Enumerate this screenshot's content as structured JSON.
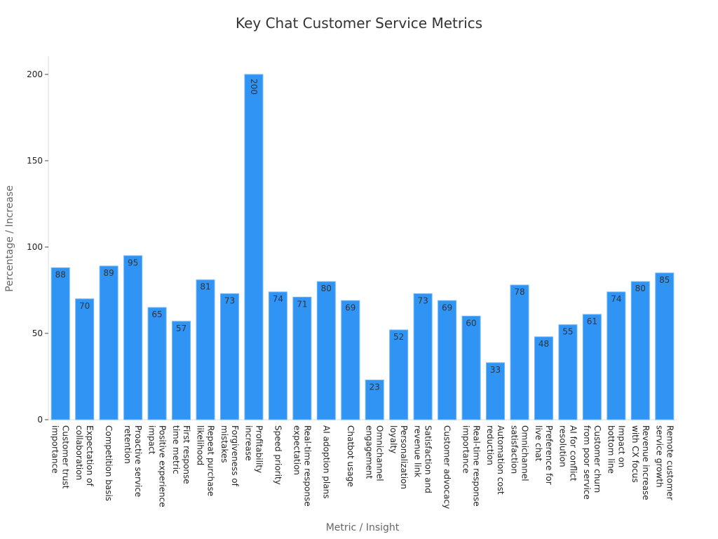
{
  "chart_data": {
    "type": "bar",
    "title": "Key Chat Customer Service Metrics",
    "xlabel": "Metric / Insight",
    "ylabel": "Percentage / Increase",
    "ylim": [
      0,
      210
    ],
    "yticks": [
      0,
      50,
      100,
      150,
      200
    ],
    "grid": false,
    "bar_color": "#3094f5",
    "categories": [
      [
        "Customer trust",
        "importance"
      ],
      [
        "Expectation of",
        "collaboration"
      ],
      [
        "Competition basis"
      ],
      [
        "Proactive service",
        "retention"
      ],
      [
        "Positive experience",
        "impact"
      ],
      [
        "First response",
        "time metric"
      ],
      [
        "Repeat purchase",
        "likelihood"
      ],
      [
        "Forgiveness of",
        "mistakes"
      ],
      [
        "Profitability",
        "increase"
      ],
      [
        "Speed priority"
      ],
      [
        "Real-time response",
        "expectation"
      ],
      [
        "AI adoption plans"
      ],
      [
        "Chatbot usage"
      ],
      [
        "Omnichannel",
        "engagement"
      ],
      [
        "Personalization",
        "loyalty"
      ],
      [
        "Satisfaction and",
        "revenue link"
      ],
      [
        "Customer advocacy"
      ],
      [
        "Real-time response",
        "importance"
      ],
      [
        "Automation cost",
        "reduction"
      ],
      [
        "Omnichannel",
        "satisfaction"
      ],
      [
        "Preference for",
        "live chat"
      ],
      [
        "AI for conflict",
        "resolution"
      ],
      [
        "Customer churn",
        "from poor service"
      ],
      [
        "Impact on",
        "bottom line"
      ],
      [
        "Revenue increase",
        "with CX focus"
      ],
      [
        "Remote customer",
        "service growth"
      ]
    ],
    "values": [
      88,
      70,
      89,
      95,
      65,
      57,
      81,
      73,
      200,
      74,
      71,
      80,
      69,
      23,
      52,
      73,
      69,
      60,
      33,
      78,
      48,
      55,
      61,
      74,
      80,
      85
    ]
  }
}
